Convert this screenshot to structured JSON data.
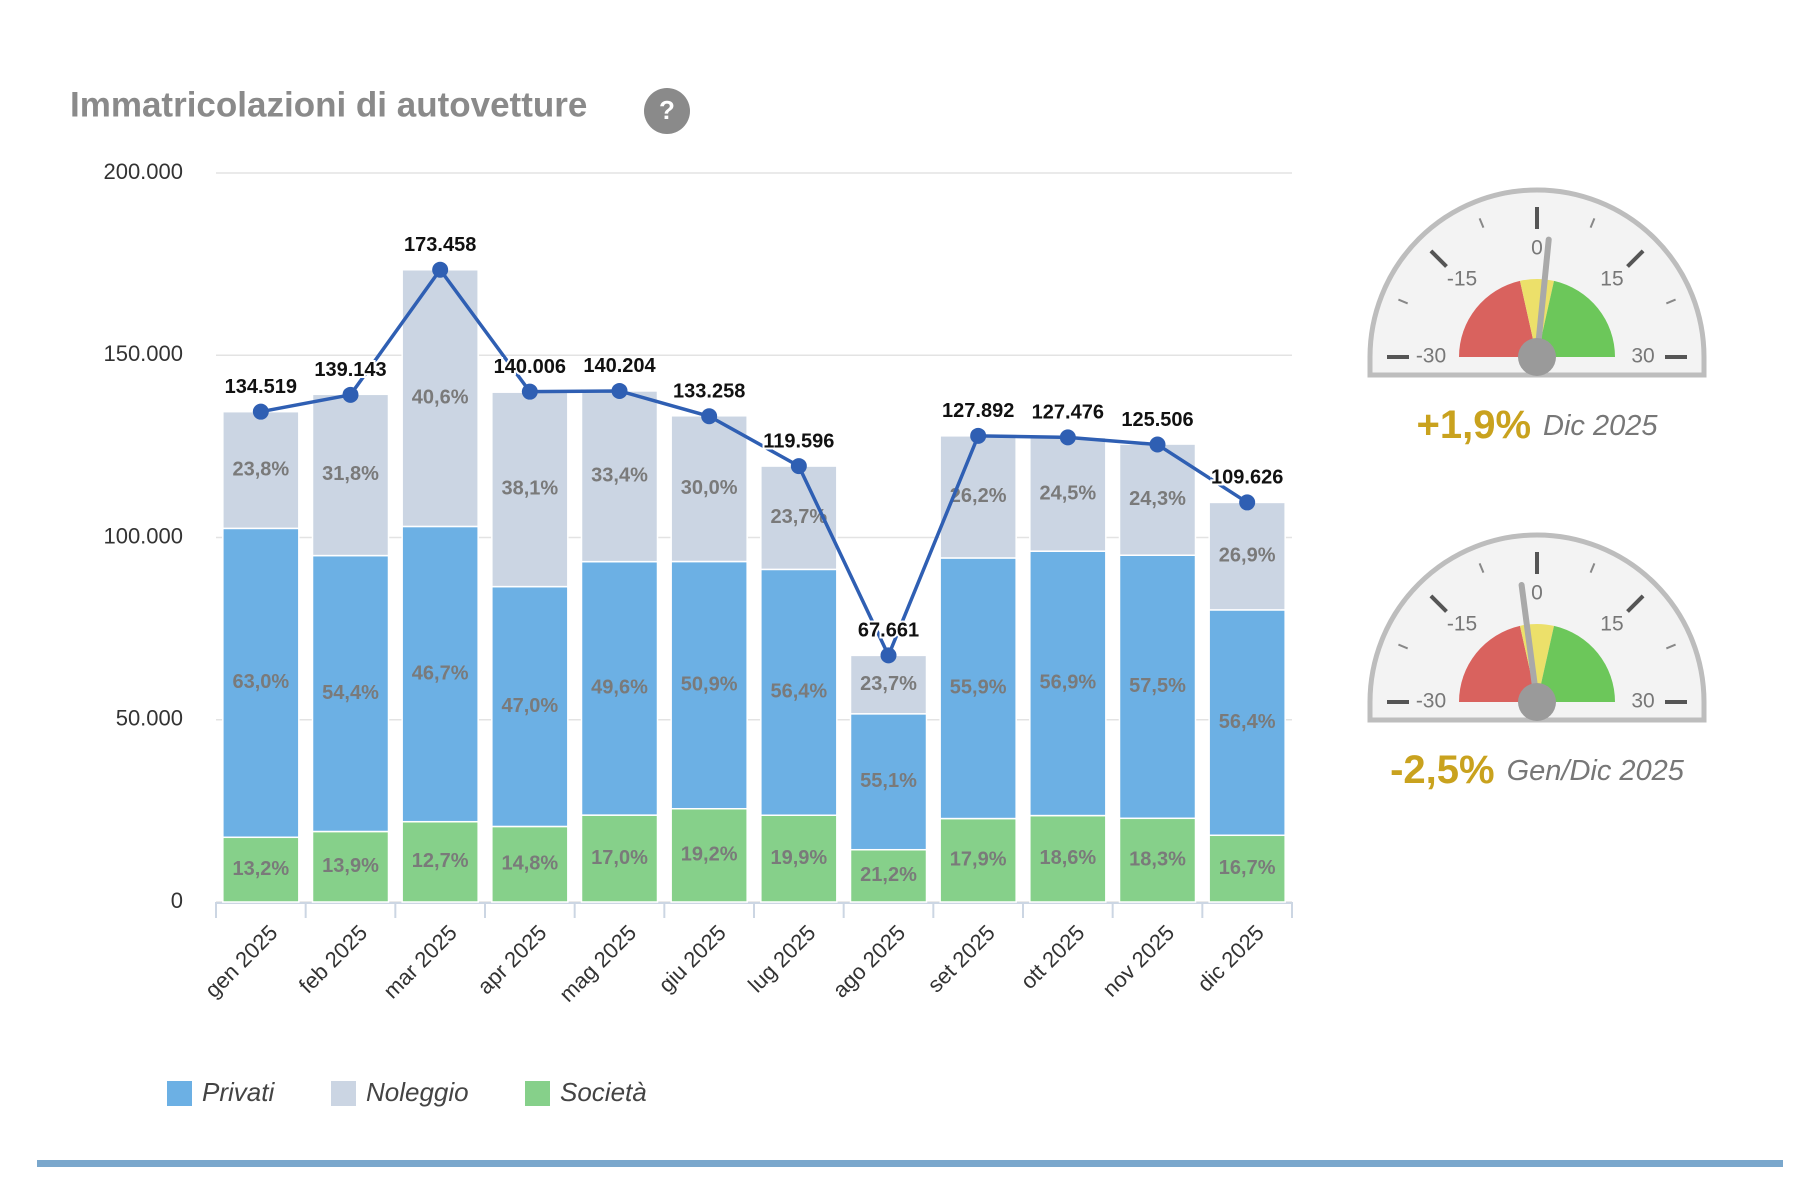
{
  "chart_data": [
    {
      "type": "bar",
      "title": "Immatricolazioni di autovetture",
      "help": "?",
      "categories": [
        "gen 2025",
        "feb 2025",
        "mar 2025",
        "apr 2025",
        "mag 2025",
        "giu 2025",
        "lug 2025",
        "ago 2025",
        "set 2025",
        "ott 2025",
        "nov 2025",
        "dic 2025"
      ],
      "series": [
        {
          "name": "Società",
          "color": "#86d08a",
          "values": [
            17757,
            19341,
            22029,
            20721,
            23835,
            25586,
            23800,
            14344,
            22893,
            23711,
            22968,
            18308
          ],
          "value_labels": [
            "13,2%",
            "13,9%",
            "12,7%",
            "14,8%",
            "17,0%",
            "19,2%",
            "19,9%",
            "21,2%",
            "17,9%",
            "18,6%",
            "18,3%",
            "16,7%"
          ]
        },
        {
          "name": "Privati",
          "color": "#6cb0e4",
          "values": [
            84747,
            75694,
            81005,
            65803,
            69541,
            67828,
            67452,
            37281,
            71492,
            72534,
            72166,
            61829
          ],
          "value_labels": [
            "63,0%",
            "54,4%",
            "46,7%",
            "47,0%",
            "49,6%",
            "50,9%",
            "56,4%",
            "55,1%",
            "55,9%",
            "56,9%",
            "57,5%",
            "56,4%"
          ]
        },
        {
          "name": "Noleggio",
          "color": "#cbd5e3",
          "values": [
            32016,
            44247,
            70424,
            53342,
            46828,
            39977,
            28344,
            16036,
            33508,
            31232,
            30498,
            29489
          ],
          "value_labels": [
            "23,8%",
            "31,8%",
            "40,6%",
            "38,1%",
            "33,4%",
            "30,0%",
            "23,7%",
            "23,7%",
            "26,2%",
            "24,5%",
            "24,3%",
            "26,9%"
          ]
        }
      ],
      "line": {
        "color": "#2f5fb3",
        "values": [
          134519,
          139143,
          173458,
          140006,
          140204,
          133258,
          119596,
          67661,
          127892,
          127476,
          125506,
          109626
        ],
        "value_labels": [
          "134.519",
          "139.143",
          "173.458",
          "140.006",
          "140.204",
          "133.258",
          "119.596",
          "67.661",
          "127.892",
          "127.476",
          "125.506",
          "109.626"
        ]
      },
      "legend_order": [
        1,
        2,
        0
      ],
      "ylim": [
        0,
        200000
      ],
      "yticks": [
        0,
        {
          "value": 50000,
          "label": "50.000"
        },
        {
          "value": 100000,
          "label": "100.000"
        },
        {
          "value": 150000,
          "label": "150.000"
        },
        {
          "value": 200000,
          "label": "200.000"
        }
      ],
      "grid": true
    },
    {
      "type": "gauge",
      "value": 1.9,
      "value_label": "+1,9%",
      "subtitle": "Dic 2025",
      "lim": [
        -30,
        30
      ],
      "ticks": [
        -30,
        -15,
        0,
        15,
        30
      ]
    },
    {
      "type": "gauge",
      "value": -2.5,
      "value_label": "-2,5%",
      "subtitle": "Gen/Dic 2025",
      "lim": [
        -30,
        30
      ],
      "ticks": [
        -30,
        -15,
        0,
        15,
        30
      ]
    }
  ]
}
